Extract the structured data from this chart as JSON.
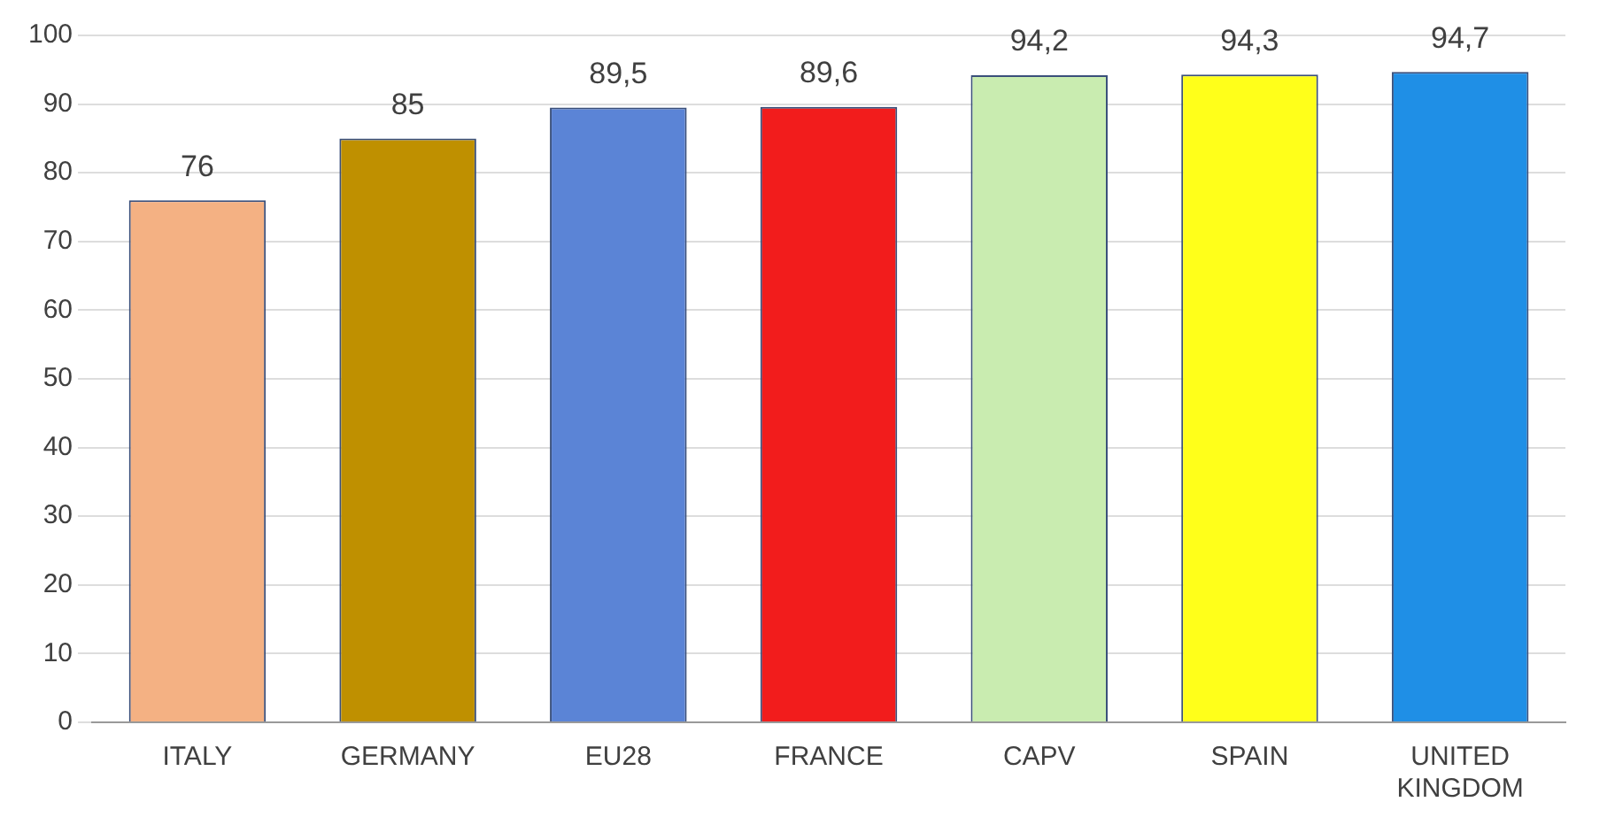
{
  "chart_data": {
    "type": "bar",
    "categories": [
      "ITALY",
      "GERMANY",
      "EU28",
      "FRANCE",
      "CAPV",
      "SPAIN",
      "UNITED KINGDOM"
    ],
    "values": [
      76,
      85,
      89.5,
      89.6,
      94.2,
      94.3,
      94.7
    ],
    "value_labels": [
      "76",
      "85",
      "89,5",
      "89,6",
      "94,2",
      "94,3",
      "94,7"
    ],
    "colors": [
      "#f4b183",
      "#bf9000",
      "#5b84d6",
      "#f21c1c",
      "#c9ecb0",
      "#ffff1a",
      "#1f8fe6"
    ],
    "ylim": [
      0,
      100
    ],
    "yticks": [
      0,
      10,
      20,
      30,
      40,
      50,
      60,
      70,
      80,
      90,
      100
    ],
    "grid": "y",
    "legend": false
  }
}
